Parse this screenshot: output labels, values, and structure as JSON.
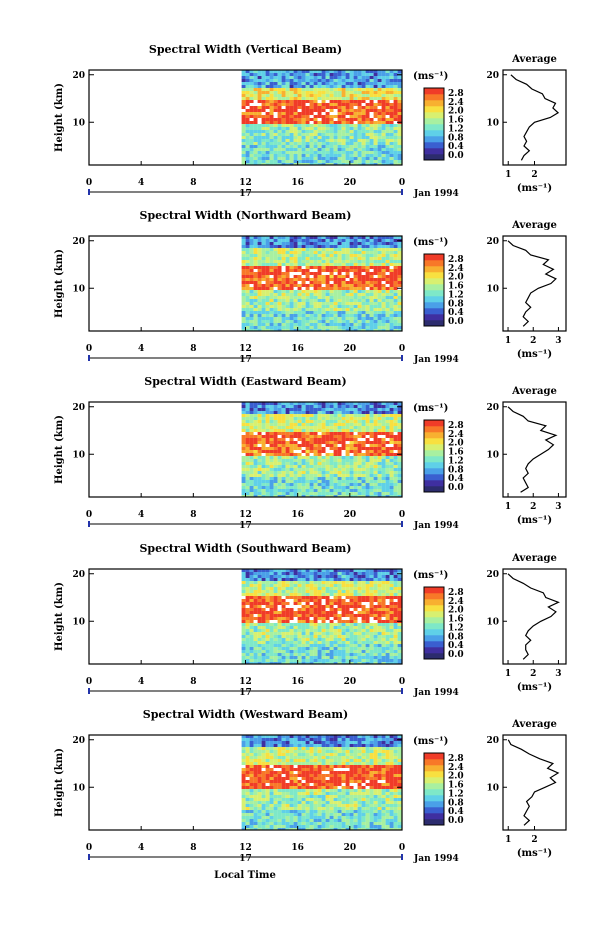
{
  "figure": {
    "xlabel": "Local Time",
    "date_label": "Jan 1994",
    "day_label": "17",
    "colorbar_unit": "(ms⁻¹)",
    "average_title": "Average",
    "average_xlabel": "(ms⁻¹)",
    "ylabel": "Height (km)",
    "colorbar_ticks": [
      "2.8",
      "2.4",
      "2.0",
      "1.6",
      "1.2",
      "0.8",
      "0.4",
      "0.0"
    ],
    "palette": [
      "#2c2c6e",
      "#3f2fa0",
      "#3a5fd0",
      "#4aa0e8",
      "#5fd0e8",
      "#7ee8c8",
      "#a8f0a0",
      "#d8f070",
      "#f8e040",
      "#f8b030",
      "#f87828",
      "#f03c28"
    ]
  },
  "chart_data": [
    {
      "type": "heatmap",
      "title": "Spectral Width (Vertical Beam)",
      "x_ticks": [
        "0",
        "4",
        "8",
        "12",
        "16",
        "20",
        "0"
      ],
      "xlim": [
        0,
        24
      ],
      "data_start_hour": 11.7,
      "y_ticks": [
        "20",
        "10"
      ],
      "ylim": [
        1,
        21
      ],
      "colorbar_range": [
        0.0,
        2.8
      ],
      "bands": [
        {
          "hmin": 17.5,
          "hmax": 21,
          "width": 0.8
        },
        {
          "hmin": 14.5,
          "hmax": 17.5,
          "width": 1.9
        },
        {
          "hmin": 9.5,
          "hmax": 14.5,
          "width": 2.7
        },
        {
          "hmin": 5,
          "hmax": 9.5,
          "width": 1.4
        },
        {
          "hmin": 1,
          "hmax": 5,
          "width": 1.2
        }
      ],
      "average_ticks": [
        "1",
        "2"
      ],
      "average_xlim": [
        0.8,
        3.2
      ],
      "average_profile": [
        [
          1.5,
          2
        ],
        [
          1.6,
          3
        ],
        [
          1.8,
          4
        ],
        [
          1.6,
          5
        ],
        [
          1.7,
          6
        ],
        [
          1.6,
          7
        ],
        [
          1.7,
          8
        ],
        [
          1.8,
          9
        ],
        [
          2.0,
          10
        ],
        [
          2.6,
          11
        ],
        [
          2.9,
          12
        ],
        [
          2.7,
          13
        ],
        [
          2.8,
          14
        ],
        [
          2.4,
          15
        ],
        [
          2.3,
          16
        ],
        [
          1.9,
          17
        ],
        [
          1.7,
          18
        ],
        [
          1.3,
          19
        ],
        [
          1.1,
          20
        ]
      ]
    },
    {
      "type": "heatmap",
      "title": "Spectral Width (Northward Beam)",
      "x_ticks": [
        "0",
        "4",
        "8",
        "12",
        "16",
        "20",
        "0"
      ],
      "xlim": [
        0,
        24
      ],
      "data_start_hour": 11.7,
      "y_ticks": [
        "20",
        "10"
      ],
      "ylim": [
        1,
        21
      ],
      "colorbar_range": [
        0.0,
        2.8
      ],
      "bands": [
        {
          "hmin": 18.5,
          "hmax": 21,
          "width": 0.7
        },
        {
          "hmin": 15,
          "hmax": 18.5,
          "width": 1.6
        },
        {
          "hmin": 12.5,
          "hmax": 15,
          "width": 2.8
        },
        {
          "hmin": 9.5,
          "hmax": 12.5,
          "width": 2.6
        },
        {
          "hmin": 5,
          "hmax": 9.5,
          "width": 1.5
        },
        {
          "hmin": 1,
          "hmax": 5,
          "width": 1.2
        }
      ],
      "average_ticks": [
        "1",
        "2",
        "3"
      ],
      "average_xlim": [
        0.8,
        3.3
      ],
      "average_profile": [
        [
          1.6,
          2
        ],
        [
          1.8,
          3
        ],
        [
          1.6,
          4
        ],
        [
          1.7,
          5
        ],
        [
          1.9,
          6
        ],
        [
          1.7,
          7
        ],
        [
          1.8,
          8
        ],
        [
          1.9,
          9
        ],
        [
          2.2,
          10
        ],
        [
          2.7,
          11
        ],
        [
          2.9,
          12
        ],
        [
          2.5,
          13
        ],
        [
          2.8,
          14
        ],
        [
          2.4,
          15
        ],
        [
          2.6,
          16
        ],
        [
          1.9,
          17
        ],
        [
          1.7,
          18
        ],
        [
          1.2,
          19
        ],
        [
          1.0,
          20
        ]
      ]
    },
    {
      "type": "heatmap",
      "title": "Spectral Width (Eastward Beam)",
      "x_ticks": [
        "0",
        "4",
        "8",
        "12",
        "16",
        "20",
        "0"
      ],
      "xlim": [
        0,
        24
      ],
      "data_start_hour": 11.7,
      "y_ticks": [
        "20",
        "10"
      ],
      "ylim": [
        1,
        21
      ],
      "colorbar_range": [
        0.0,
        2.8
      ],
      "bands": [
        {
          "hmin": 18.5,
          "hmax": 21,
          "width": 0.7
        },
        {
          "hmin": 15,
          "hmax": 18.5,
          "width": 1.7
        },
        {
          "hmin": 12.5,
          "hmax": 15,
          "width": 2.8
        },
        {
          "hmin": 9.5,
          "hmax": 12.5,
          "width": 2.6
        },
        {
          "hmin": 5,
          "hmax": 9.5,
          "width": 1.5
        },
        {
          "hmin": 1,
          "hmax": 5,
          "width": 1.2
        }
      ],
      "average_ticks": [
        "1",
        "2",
        "3"
      ],
      "average_xlim": [
        0.8,
        3.3
      ],
      "average_profile": [
        [
          1.5,
          2
        ],
        [
          1.8,
          3
        ],
        [
          1.7,
          4
        ],
        [
          1.6,
          5
        ],
        [
          1.8,
          6
        ],
        [
          1.7,
          7
        ],
        [
          1.8,
          8
        ],
        [
          2.0,
          9
        ],
        [
          2.3,
          10
        ],
        [
          2.6,
          11
        ],
        [
          2.8,
          12
        ],
        [
          2.5,
          13
        ],
        [
          2.9,
          14
        ],
        [
          2.3,
          15
        ],
        [
          2.5,
          16
        ],
        [
          1.8,
          17
        ],
        [
          1.6,
          18
        ],
        [
          1.2,
          19
        ],
        [
          1.0,
          20
        ]
      ]
    },
    {
      "type": "heatmap",
      "title": "Spectral Width (Southward Beam)",
      "x_ticks": [
        "0",
        "4",
        "8",
        "12",
        "16",
        "20",
        "0"
      ],
      "xlim": [
        0,
        24
      ],
      "data_start_hour": 11.7,
      "y_ticks": [
        "20",
        "10"
      ],
      "ylim": [
        1,
        21
      ],
      "colorbar_range": [
        0.0,
        2.8
      ],
      "bands": [
        {
          "hmin": 18.5,
          "hmax": 21,
          "width": 0.7
        },
        {
          "hmin": 15.5,
          "hmax": 18.5,
          "width": 1.7
        },
        {
          "hmin": 12.5,
          "hmax": 15.5,
          "width": 2.8
        },
        {
          "hmin": 9.5,
          "hmax": 12.5,
          "width": 2.7
        },
        {
          "hmin": 5,
          "hmax": 9.5,
          "width": 1.5
        },
        {
          "hmin": 1,
          "hmax": 5,
          "width": 1.2
        }
      ],
      "average_ticks": [
        "1",
        "2",
        "3"
      ],
      "average_xlim": [
        0.8,
        3.3
      ],
      "average_profile": [
        [
          1.6,
          2
        ],
        [
          1.8,
          3
        ],
        [
          1.7,
          4
        ],
        [
          1.7,
          5
        ],
        [
          1.9,
          6
        ],
        [
          1.7,
          7
        ],
        [
          1.8,
          8
        ],
        [
          2.0,
          9
        ],
        [
          2.3,
          10
        ],
        [
          2.7,
          11
        ],
        [
          2.9,
          12
        ],
        [
          2.6,
          13
        ],
        [
          3.0,
          14
        ],
        [
          2.5,
          15
        ],
        [
          2.4,
          16
        ],
        [
          1.9,
          17
        ],
        [
          1.6,
          18
        ],
        [
          1.2,
          19
        ],
        [
          1.0,
          20
        ]
      ]
    },
    {
      "type": "heatmap",
      "title": "Spectral Width (Westward Beam)",
      "x_ticks": [
        "0",
        "4",
        "8",
        "12",
        "16",
        "20",
        "0"
      ],
      "xlim": [
        0,
        24
      ],
      "data_start_hour": 11.7,
      "y_ticks": [
        "20",
        "10"
      ],
      "ylim": [
        1,
        21
      ],
      "colorbar_range": [
        0.0,
        2.8
      ],
      "bands": [
        {
          "hmin": 18.5,
          "hmax": 21,
          "width": 0.7
        },
        {
          "hmin": 15,
          "hmax": 18.5,
          "width": 1.7
        },
        {
          "hmin": 12.5,
          "hmax": 15,
          "width": 2.8
        },
        {
          "hmin": 9.5,
          "hmax": 12.5,
          "width": 2.7
        },
        {
          "hmin": 5,
          "hmax": 9.5,
          "width": 1.5
        },
        {
          "hmin": 1,
          "hmax": 5,
          "width": 1.2
        }
      ],
      "average_ticks": [
        "1",
        "2"
      ],
      "average_xlim": [
        0.8,
        3.2
      ],
      "average_profile": [
        [
          1.6,
          2
        ],
        [
          1.8,
          3
        ],
        [
          1.6,
          4
        ],
        [
          1.7,
          5
        ],
        [
          1.8,
          6
        ],
        [
          1.7,
          7
        ],
        [
          1.9,
          8
        ],
        [
          2.0,
          9
        ],
        [
          2.4,
          10
        ],
        [
          2.8,
          11
        ],
        [
          2.6,
          12
        ],
        [
          2.9,
          13
        ],
        [
          2.5,
          14
        ],
        [
          2.7,
          15
        ],
        [
          2.2,
          16
        ],
        [
          1.8,
          17
        ],
        [
          1.5,
          18
        ],
        [
          1.1,
          19
        ],
        [
          1.0,
          20
        ]
      ]
    }
  ]
}
